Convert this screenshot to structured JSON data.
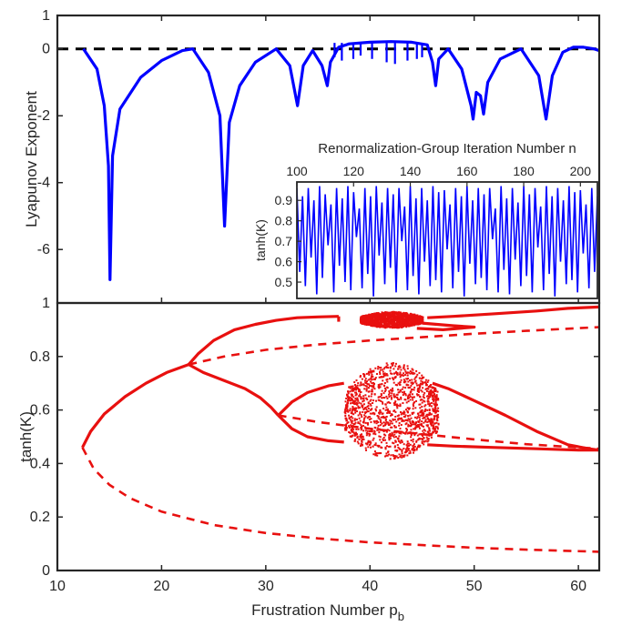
{
  "chart_data": [
    {
      "id": "top",
      "type": "line",
      "ylabel": "Lyapunov Exponent",
      "xlim": [
        10,
        62
      ],
      "ylim": [
        -7.6,
        1
      ],
      "yticks": [
        1,
        0,
        -2,
        -4,
        -6
      ],
      "ytick_labels": [
        "1",
        "0",
        "-2",
        "-4",
        "-6"
      ],
      "reference_line": {
        "y": 0,
        "style": "dashed",
        "color": "#000000"
      },
      "series": [
        {
          "color": "#0000ff",
          "baseline_points": [
            [
              12.5,
              0
            ],
            [
              13.8,
              -0.6
            ],
            [
              14.5,
              -1.7
            ],
            [
              14.9,
              -3.5
            ],
            [
              15.05,
              -6.9
            ],
            [
              15.3,
              -3.2
            ],
            [
              16.0,
              -1.8
            ],
            [
              18.0,
              -0.85
            ],
            [
              20.0,
              -0.35
            ],
            [
              22.0,
              -0.05
            ],
            [
              23.0,
              0
            ],
            [
              24.5,
              -0.7
            ],
            [
              25.6,
              -2.0
            ],
            [
              26.05,
              -5.3
            ],
            [
              26.5,
              -2.2
            ],
            [
              27.5,
              -1.1
            ],
            [
              29.0,
              -0.4
            ],
            [
              31.0,
              0
            ],
            [
              32.3,
              -0.5
            ],
            [
              33.05,
              -1.7
            ],
            [
              33.6,
              -0.5
            ],
            [
              34.5,
              -0.05
            ],
            [
              35.4,
              -0.5
            ],
            [
              35.9,
              -1.1
            ],
            [
              36.2,
              -0.4
            ],
            [
              37.0,
              0.05
            ],
            [
              38.0,
              0.15
            ],
            [
              40.0,
              0.2
            ],
            [
              42.0,
              0.22
            ],
            [
              44.0,
              0.2
            ],
            [
              45.5,
              0.12
            ],
            [
              46.0,
              -0.4
            ],
            [
              46.3,
              -1.1
            ],
            [
              46.6,
              -0.3
            ],
            [
              47.5,
              0
            ],
            [
              48.8,
              -0.6
            ],
            [
              49.7,
              -1.7
            ],
            [
              49.9,
              -2.1
            ],
            [
              50.2,
              -1.3
            ],
            [
              50.6,
              -1.4
            ],
            [
              50.9,
              -1.95
            ],
            [
              51.3,
              -1.0
            ],
            [
              52.5,
              -0.3
            ],
            [
              54.5,
              0
            ],
            [
              56.2,
              -0.8
            ],
            [
              56.9,
              -2.1
            ],
            [
              57.5,
              -0.8
            ],
            [
              58.5,
              -0.1
            ],
            [
              59.5,
              0.05
            ],
            [
              60.5,
              0.05
            ],
            [
              61.5,
              0
            ],
            [
              62,
              -0.05
            ]
          ],
          "spikes": [
            [
              36.6,
              -0.25
            ],
            [
              37.3,
              -0.35
            ],
            [
              38.4,
              -0.3
            ],
            [
              39.1,
              -0.2
            ],
            [
              40.2,
              -0.3
            ],
            [
              41.6,
              -0.4
            ],
            [
              42.4,
              -0.45
            ],
            [
              43.6,
              -0.35
            ],
            [
              44.5,
              -0.3
            ],
            [
              45.0,
              -0.25
            ]
          ]
        }
      ]
    },
    {
      "id": "inset",
      "type": "line",
      "title": "Renormalization-Group Iteration Number n",
      "ylabel": "tanh(K)",
      "xlim": [
        100,
        206
      ],
      "ylim": [
        0.42,
        0.99
      ],
      "xticks": [
        100,
        120,
        140,
        160,
        180,
        200
      ],
      "xtick_labels": [
        "100",
        "120",
        "140",
        "160",
        "180",
        "200"
      ],
      "yticks": [
        0.5,
        0.6,
        0.7,
        0.8,
        0.9
      ],
      "ytick_labels": [
        "0.5",
        "0.6",
        "0.7",
        "0.8",
        "0.9"
      ],
      "series": [
        {
          "color": "#0000ff",
          "x_start": 100,
          "values": [
            0.96,
            0.55,
            0.92,
            0.48,
            0.96,
            0.62,
            0.9,
            0.44,
            0.97,
            0.52,
            0.93,
            0.68,
            0.88,
            0.45,
            0.96,
            0.58,
            0.91,
            0.5,
            0.97,
            0.46,
            0.94,
            0.72,
            0.86,
            0.47,
            0.96,
            0.54,
            0.92,
            0.43,
            0.97,
            0.63,
            0.89,
            0.49,
            0.96,
            0.57,
            0.93,
            0.45,
            0.96,
            0.7,
            0.87,
            0.46,
            0.97,
            0.53,
            0.91,
            0.44,
            0.96,
            0.6,
            0.9,
            0.48,
            0.97,
            0.51,
            0.94,
            0.45,
            0.95,
            0.66,
            0.88,
            0.47,
            0.96,
            0.55,
            0.92,
            0.43,
            0.97,
            0.59,
            0.9,
            0.49,
            0.96,
            0.52,
            0.93,
            0.46,
            0.96,
            0.71,
            0.86,
            0.45,
            0.97,
            0.56,
            0.91,
            0.44,
            0.96,
            0.61,
            0.89,
            0.48,
            0.97,
            0.53,
            0.93,
            0.45,
            0.96,
            0.67,
            0.87,
            0.46,
            0.97,
            0.54,
            0.92,
            0.43,
            0.96,
            0.6,
            0.9,
            0.49,
            0.97,
            0.51,
            0.94,
            0.45,
            0.95,
            0.64,
            0.88,
            0.47,
            0.96,
            0.55,
            0.92
          ]
        }
      ]
    },
    {
      "id": "bottom",
      "type": "line",
      "xlabel": "Frustration Number p",
      "xlabel_subscript": "b",
      "ylabel": "tanh(K)",
      "xlim": [
        10,
        62
      ],
      "ylim": [
        0,
        1
      ],
      "xticks": [
        10,
        20,
        30,
        40,
        50,
        60
      ],
      "xtick_labels": [
        "10",
        "20",
        "30",
        "40",
        "50",
        "60"
      ],
      "yticks": [
        0,
        0.2,
        0.4,
        0.6,
        0.8,
        1
      ],
      "ytick_labels": [
        "0",
        "0.2",
        "0.4",
        "0.6",
        "0.8",
        "1"
      ],
      "series": [
        {
          "color": "#e8100f",
          "stable_branches": [
            [
              [
                12.4,
                0.46
              ],
              [
                13.2,
                0.52
              ],
              [
                14.5,
                0.585
              ],
              [
                16.5,
                0.65
              ],
              [
                18.5,
                0.7
              ],
              [
                20.5,
                0.74
              ],
              [
                22.6,
                0.77
              ]
            ],
            [
              [
                22.6,
                0.77
              ],
              [
                23.5,
                0.81
              ],
              [
                25.0,
                0.86
              ],
              [
                27.0,
                0.9
              ],
              [
                29.0,
                0.92
              ],
              [
                31.0,
                0.935
              ],
              [
                33.0,
                0.945
              ],
              [
                35.0,
                0.948
              ],
              [
                37.0,
                0.95
              ]
            ],
            [
              [
                22.6,
                0.77
              ],
              [
                24.0,
                0.74
              ],
              [
                26.0,
                0.71
              ],
              [
                28.0,
                0.68
              ],
              [
                29.5,
                0.645
              ],
              [
                30.5,
                0.61
              ],
              [
                31.2,
                0.58
              ]
            ],
            [
              [
                31.2,
                0.58
              ],
              [
                32.5,
                0.63
              ],
              [
                34.0,
                0.665
              ],
              [
                36.0,
                0.69
              ],
              [
                37.5,
                0.7
              ]
            ],
            [
              [
                31.2,
                0.58
              ],
              [
                32.5,
                0.53
              ],
              [
                34.0,
                0.5
              ],
              [
                36.0,
                0.485
              ],
              [
                37.5,
                0.48
              ]
            ],
            [
              [
                46.0,
                0.7
              ],
              [
                47.5,
                0.68
              ],
              [
                50.0,
                0.635
              ],
              [
                53.0,
                0.58
              ],
              [
                56.0,
                0.52
              ],
              [
                59.0,
                0.47
              ],
              [
                61.0,
                0.455
              ],
              [
                62.0,
                0.45
              ]
            ],
            [
              [
                45.5,
                0.47
              ],
              [
                48.0,
                0.465
              ],
              [
                52.0,
                0.46
              ],
              [
                56.0,
                0.455
              ],
              [
                60.0,
                0.45
              ],
              [
                62.0,
                0.45
              ]
            ],
            [
              [
                37.0,
                0.95
              ],
              [
                37.0,
                0.93
              ]
            ],
            [
              [
                45.5,
                0.945
              ],
              [
                48.0,
                0.95
              ],
              [
                52.0,
                0.96
              ],
              [
                56.0,
                0.97
              ],
              [
                59.0,
                0.98
              ],
              [
                62.0,
                0.985
              ]
            ],
            [
              [
                45.0,
                0.925
              ],
              [
                48.0,
                0.915
              ],
              [
                50.0,
                0.91
              ],
              [
                47.0,
                0.9
              ],
              [
                44.5,
                0.905
              ]
            ]
          ],
          "unstable_branches": [
            [
              [
                12.4,
                0.46
              ],
              [
                13.5,
                0.38
              ],
              [
                15.0,
                0.32
              ],
              [
                17.0,
                0.27
              ],
              [
                20.0,
                0.22
              ],
              [
                25.0,
                0.17
              ],
              [
                30.0,
                0.14
              ],
              [
                35.0,
                0.12
              ],
              [
                40.0,
                0.105
              ],
              [
                45.0,
                0.095
              ],
              [
                50.0,
                0.085
              ],
              [
                55.0,
                0.078
              ],
              [
                62.0,
                0.07
              ]
            ],
            [
              [
                22.6,
                0.77
              ],
              [
                26.0,
                0.8
              ],
              [
                30.0,
                0.825
              ],
              [
                35.0,
                0.845
              ],
              [
                40.0,
                0.86
              ],
              [
                45.0,
                0.872
              ],
              [
                50.0,
                0.885
              ],
              [
                55.0,
                0.896
              ],
              [
                62.0,
                0.91
              ]
            ],
            [
              [
                31.2,
                0.58
              ],
              [
                35.0,
                0.555
              ],
              [
                40.0,
                0.53
              ],
              [
                45.0,
                0.51
              ],
              [
                50.0,
                0.49
              ],
              [
                55.0,
                0.472
              ],
              [
                62.0,
                0.455
              ]
            ]
          ],
          "chaotic_bands": [
            {
              "x": [
                37.5,
                46.5
              ],
              "y": [
                0.42,
                0.78
              ]
            },
            {
              "x": [
                39.0,
                45.0
              ],
              "y": [
                0.91,
                0.97
              ]
            }
          ]
        }
      ]
    }
  ]
}
